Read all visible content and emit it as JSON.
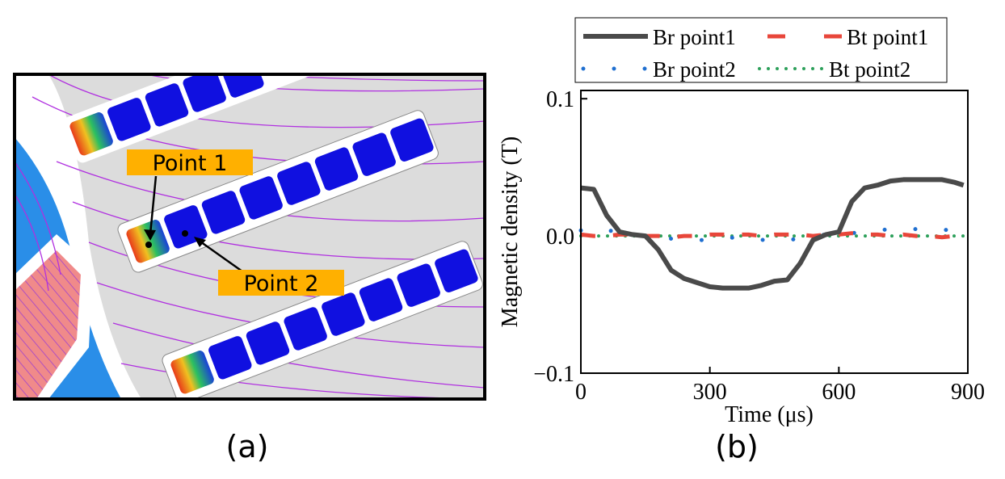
{
  "panel_a": {
    "labels": [
      "Point 1",
      "Point 2"
    ],
    "caption": "(a)"
  },
  "chart_data": {
    "type": "line",
    "caption": "(b)",
    "x_label": "Time (μs)",
    "y_label": "Magnetic density (T)",
    "x": [
      0,
      30,
      60,
      90,
      120,
      150,
      180,
      210,
      240,
      270,
      300,
      330,
      360,
      390,
      420,
      450,
      480,
      510,
      540,
      570,
      600,
      630,
      660,
      690,
      720,
      750,
      780,
      810,
      840,
      870,
      890
    ],
    "series": [
      {
        "name": "Br point1",
        "color": "#4a4a4a",
        "style": "solid",
        "values": [
          0.035,
          0.034,
          0.015,
          0.003,
          0.001,
          0.0,
          -0.01,
          -0.025,
          -0.031,
          -0.034,
          -0.037,
          -0.038,
          -0.038,
          -0.038,
          -0.036,
          -0.033,
          -0.032,
          -0.02,
          -0.003,
          0.001,
          0.003,
          0.025,
          0.035,
          0.037,
          0.04,
          0.041,
          0.041,
          0.041,
          0.041,
          0.039,
          0.037
        ]
      },
      {
        "name": "Bt point1",
        "color": "#e8463a",
        "style": "dashed",
        "values": [
          0.001,
          0.0,
          0.0,
          0.001,
          0.001,
          0.0,
          0.0,
          -0.001,
          0.0,
          0.0,
          0.001,
          0.001,
          0.001,
          0.001,
          0.0,
          0.001,
          0.001,
          0.001,
          0.0,
          0.001,
          0.001,
          0.002,
          0.001,
          0.001,
          0.0,
          0.001,
          0.0,
          0.0,
          -0.001,
          0.0,
          0.0
        ]
      },
      {
        "name": "Br point2",
        "color": "#1f6fd0",
        "style": "sparse",
        "values": [
          0.004,
          0.003,
          0.005,
          0.001,
          0.0,
          0.001,
          -0.001,
          -0.002,
          -0.002,
          -0.003,
          -0.003,
          -0.002,
          -0.001,
          -0.002,
          -0.003,
          -0.002,
          -0.003,
          -0.002,
          0.0,
          0.001,
          0.001,
          0.002,
          0.003,
          0.004,
          0.005,
          0.005,
          0.005,
          0.005,
          0.005,
          0.003,
          0.002
        ]
      },
      {
        "name": "Bt point2",
        "color": "#2ca05a",
        "style": "dotted",
        "values": [
          0.0,
          0.0,
          0.0,
          0.0,
          0.0,
          0.0,
          0.0,
          0.0,
          0.0,
          0.0,
          0.0,
          0.0,
          0.0,
          0.0,
          0.0,
          0.0,
          0.0,
          0.0,
          0.0,
          0.0,
          0.0,
          0.0,
          0.0,
          0.0,
          0.0,
          0.0,
          0.0,
          0.0,
          0.0,
          0.0,
          0.0
        ]
      }
    ],
    "xlim": [
      0,
      900
    ],
    "xticks": [
      0,
      300,
      600,
      900
    ],
    "ylim": [
      -0.1,
      0.106
    ],
    "yticks": [
      {
        "value": -0.1,
        "label": "−0.1"
      },
      {
        "value": 0,
        "label": "0.0"
      },
      0.1
    ],
    "legend": "top"
  }
}
